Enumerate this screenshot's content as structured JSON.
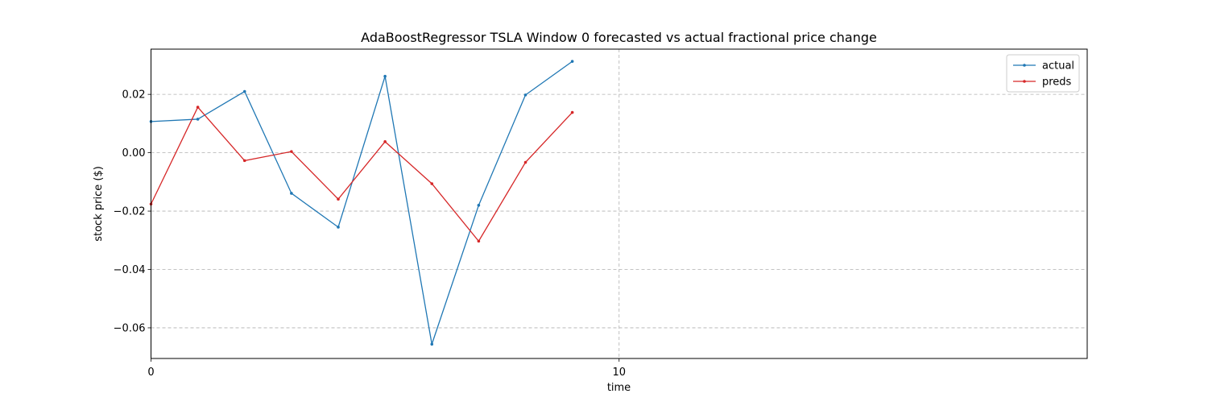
{
  "chart_data": {
    "type": "line",
    "title": "AdaBoostRegressor TSLA Window 0 forecasted vs actual fractional price change",
    "xlabel": "time",
    "ylabel": "stock price ($)",
    "xlim": [
      0,
      20
    ],
    "ylim": [
      -0.0705,
      0.0355
    ],
    "x_ticks": [
      0,
      10
    ],
    "x_tick_labels": [
      "0",
      "10"
    ],
    "y_ticks": [
      0.02,
      0.0,
      -0.02,
      -0.04,
      -0.06
    ],
    "y_tick_labels": [
      "0.02",
      "0.00",
      "−0.02",
      "−0.04",
      "−0.06"
    ],
    "grid": true,
    "legend_position": "top-right",
    "x": [
      0,
      1,
      2,
      3,
      4,
      5,
      6,
      7,
      8,
      9
    ],
    "series": [
      {
        "name": "actual",
        "color": "#1f77b4",
        "values": [
          0.0107,
          0.0115,
          0.021,
          -0.0139,
          -0.0255,
          0.0262,
          -0.0656,
          -0.018,
          0.0198,
          0.0313
        ]
      },
      {
        "name": "preds",
        "color": "#d62728",
        "values": [
          -0.0176,
          0.0156,
          -0.0027,
          0.0004,
          -0.0159,
          0.0038,
          -0.0106,
          -0.0303,
          -0.0033,
          0.0138
        ]
      }
    ]
  }
}
